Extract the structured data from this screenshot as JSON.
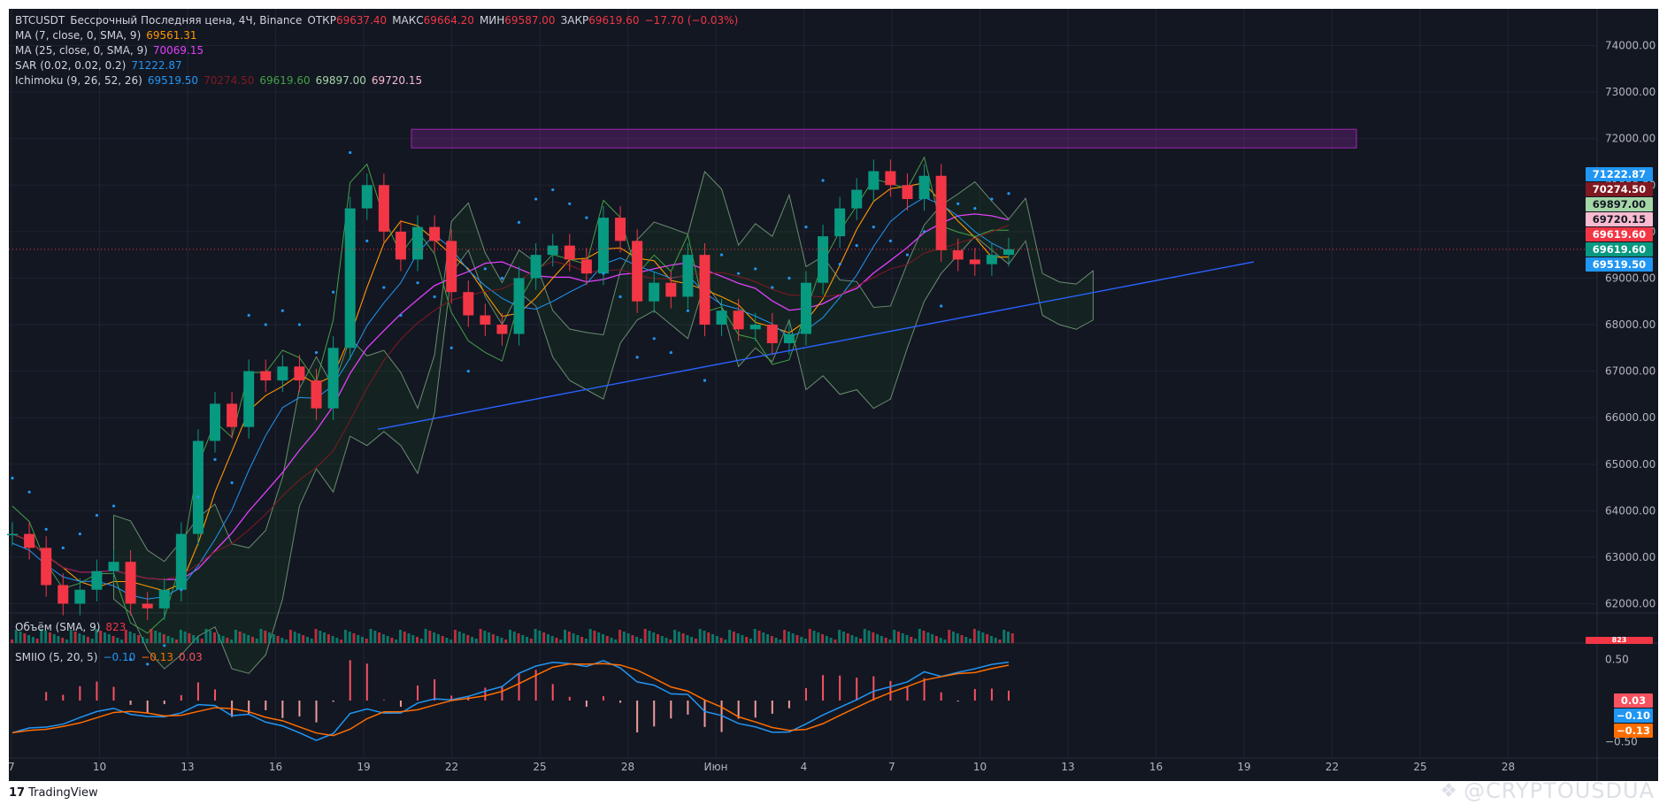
{
  "header": {
    "symbol": "BTCUSDT",
    "description": "Бессрочный Последняя цена, 4Ч, Binance",
    "open_label": "ОТКР",
    "open": "69637.40",
    "high_label": "МАКС",
    "high": "69664.20",
    "low_label": "МИН",
    "low": "69587.00",
    "close_label": "ЗАКР",
    "close": "69619.60",
    "change": "−17.70 (−0.03%)"
  },
  "indicators": {
    "ma7": {
      "label": "MA (7, close, 0, SMA, 9)",
      "value": "69561.31"
    },
    "ma25": {
      "label": "MA (25, close, 0, SMA, 9)",
      "value": "70069.15"
    },
    "sar": {
      "label": "SAR (0.02, 0.02, 0.2)",
      "value": "71222.87"
    },
    "ichimoku": {
      "label": "Ichimoku (9, 26, 52, 26)",
      "v1": "69519.50",
      "v2": "70274.50",
      "v3": "69619.60",
      "v4": "69897.00",
      "v5": "69720.15"
    },
    "volume": {
      "label": "Объём (SMA, 9)",
      "value": "823"
    },
    "smiio": {
      "label": "SMIIO (5, 20, 5)",
      "v1": "−0.10",
      "v2": "−0.13",
      "v3": "0.03"
    }
  },
  "price_badges": [
    {
      "label": "71222.87",
      "color": "#2196f3"
    },
    {
      "label": "70274.50",
      "color": "#801922"
    },
    {
      "label": "69897.00",
      "color": "#a5d6a7",
      "text": "#131722"
    },
    {
      "label": "69720.15",
      "color": "#f8bbd0",
      "text": "#131722"
    },
    {
      "label": "69619.60",
      "color": "#f23645"
    },
    {
      "label": "69619.60",
      "color": "#089981"
    },
    {
      "label": "69519.50",
      "color": "#2196f3"
    }
  ],
  "volume_badge": "823",
  "smiio_badges": [
    {
      "label": "0.03",
      "color": "#f7525f"
    },
    {
      "label": "−0.10",
      "color": "#2196f3"
    },
    {
      "label": "−0.13",
      "color": "#ff6d00"
    }
  ],
  "brand": "TradingView",
  "watermark": "@CRYPTOUSDUA",
  "colors": {
    "bg": "#131722",
    "grid": "#1f2330",
    "up": "#089981",
    "down": "#f23645",
    "sar": "#2196f3",
    "ma25": "#e040fb",
    "ma7": "#ff9800",
    "resistance_zone": "#9c27b0",
    "trendline": "#2962ff"
  },
  "chart_data": [
    {
      "type": "line",
      "title": "BTCUSDT Бессрочный Последняя цена, 4Ч, Binance",
      "x_ticks": [
        "7",
        "10",
        "13",
        "16",
        "19",
        "22",
        "25",
        "28",
        "Июн",
        "4",
        "7",
        "10",
        "13",
        "16",
        "19",
        "22",
        "25",
        "28"
      ],
      "y_ticks": [
        "74000.00",
        "73000.00",
        "72000.00",
        "71000.00",
        "70000.00",
        "69000.00",
        "68000.00",
        "67000.00",
        "66000.00",
        "65000.00",
        "64000.00",
        "63000.00",
        "62000.00"
      ],
      "ylim": [
        61800,
        74600
      ],
      "resistance_zone": [
        71800,
        72200
      ],
      "trendline": {
        "start": [
          19.5,
          65750
        ],
        "end": [
          18.5,
          69350
        ]
      },
      "series": [
        {
          "values": [
            63500,
            63200,
            62400,
            62000,
            62300,
            62700,
            62900,
            62000,
            61900,
            62300,
            63500,
            65500,
            66300,
            65800,
            67000,
            66800,
            67100,
            66800,
            66200,
            67500,
            70500,
            71000,
            70000,
            69400,
            70100,
            69800,
            68700,
            68200,
            68000,
            67800,
            69000,
            69500,
            69700,
            69400,
            69100,
            70300,
            69800,
            68500,
            68900,
            68600,
            69500,
            68000,
            68300,
            67900,
            68000,
            67600,
            67800,
            68900,
            69900,
            70500,
            70900,
            71300,
            71000,
            70700,
            71200,
            69600,
            69400,
            69300,
            69500,
            69620
          ]
        }
      ]
    },
    {
      "type": "bar",
      "title": "Объём (SMA, 9)",
      "series": [
        {
          "values": [
            823
          ]
        }
      ]
    },
    {
      "type": "line",
      "title": "SMIIO (5, 20, 5)",
      "y_ticks": [
        "0.50",
        "−0.50"
      ],
      "ylim": [
        -0.7,
        0.7
      ]
    }
  ]
}
